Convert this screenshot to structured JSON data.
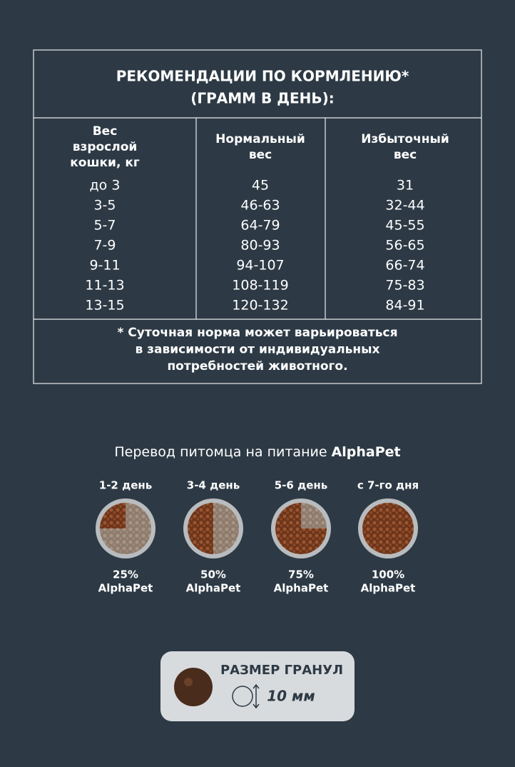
{
  "feeding_table": {
    "title": [
      "РЕКОМЕНДАЦИИ ПО КОРМЛЕНИЮ*",
      "(ГРАММ В ДЕНЬ):"
    ],
    "headers": [
      [
        "Вес",
        "взрослой",
        "кошки, кг"
      ],
      [
        "Нормальный",
        "вес"
      ],
      [
        "Избыточный",
        "вес"
      ]
    ],
    "rows": [
      [
        "до 3",
        "45",
        "31"
      ],
      [
        "3-5",
        "46-63",
        "32-44"
      ],
      [
        "5-7",
        "64-79",
        "45-55"
      ],
      [
        "7-9",
        "80-93",
        "56-65"
      ],
      [
        "9-11",
        "94-107",
        "66-74"
      ],
      [
        "11-13",
        "108-119",
        "75-83"
      ],
      [
        "13-15",
        "120-132",
        "84-91"
      ]
    ],
    "footnote": [
      "* Суточная норма может варьироваться",
      "в зависимости от индивидуальных",
      "потребностей животного."
    ]
  },
  "transition": {
    "title": "Перевод питомца на питание",
    "brand": "AlphaPet",
    "steps": [
      {
        "label": "1-2 день",
        "percent": "25%",
        "brand": "AlphaPet"
      },
      {
        "label": "3-4 день",
        "percent": "50%",
        "brand": "AlphaPet"
      },
      {
        "label": "5-6 день",
        "percent": "75%",
        "brand": "AlphaPet"
      },
      {
        "label": "с 7-го дня",
        "percent": "100%",
        "brand": "AlphaPet"
      }
    ]
  },
  "granule": {
    "title": "РАЗМЕР ГРАНУЛ",
    "size": "10 мм"
  }
}
